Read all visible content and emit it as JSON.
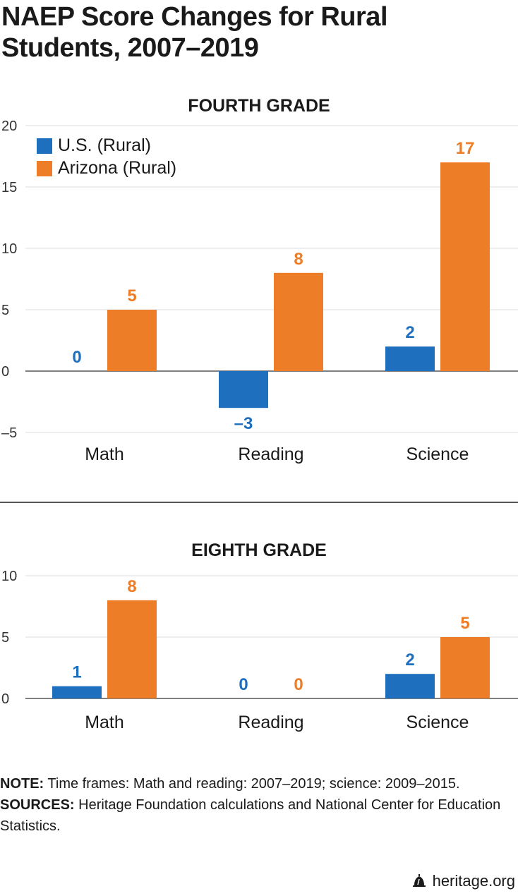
{
  "title": "NAEP Score Changes for Rural Students, 2007–2019",
  "colors": {
    "us": "#1f6fbf",
    "az": "#ee7d27",
    "grid": "#dddddd",
    "axis": "#555555",
    "text": "#333333"
  },
  "legend": {
    "us_label": "U.S. (Rural)",
    "az_label": "Arizona (Rural)"
  },
  "chart_data": [
    {
      "type": "bar",
      "title": "FOURTH GRADE",
      "categories": [
        "Math",
        "Reading",
        "Science"
      ],
      "series": [
        {
          "name": "U.S. (Rural)",
          "values": [
            0,
            -3,
            2
          ]
        },
        {
          "name": "Arizona (Rural)",
          "values": [
            5,
            8,
            17
          ]
        }
      ],
      "data_labels": [
        [
          "0",
          "–3",
          "2"
        ],
        [
          "5",
          "8",
          "17"
        ]
      ],
      "yticks": [
        20,
        15,
        10,
        5,
        0,
        -5
      ],
      "ytick_labels": [
        "20",
        "15",
        "10",
        "5",
        "0",
        "–5"
      ],
      "ylim": [
        -5,
        20
      ],
      "grid": true,
      "legend": "top-left"
    },
    {
      "type": "bar",
      "title": "EIGHTH GRADE",
      "categories": [
        "Math",
        "Reading",
        "Science"
      ],
      "series": [
        {
          "name": "U.S. (Rural)",
          "values": [
            1,
            0,
            2
          ]
        },
        {
          "name": "Arizona (Rural)",
          "values": [
            8,
            0,
            5
          ]
        }
      ],
      "data_labels": [
        [
          "1",
          "0",
          "2"
        ],
        [
          "8",
          "0",
          "5"
        ]
      ],
      "yticks": [
        10,
        5,
        0
      ],
      "ytick_labels": [
        "10",
        "5",
        "0"
      ],
      "ylim": [
        0,
        10
      ],
      "grid": true
    }
  ],
  "notes": {
    "note_label": "NOTE:",
    "note_text": " Time frames: Math and reading: 2007–2019; science: 2009–2015.",
    "sources_label": "SOURCES:",
    "sources_text": " Heritage Foundation calculations and National Center for Education Statistics."
  },
  "brand": {
    "text": "heritage.org",
    "icon": "liberty-bell-icon"
  }
}
